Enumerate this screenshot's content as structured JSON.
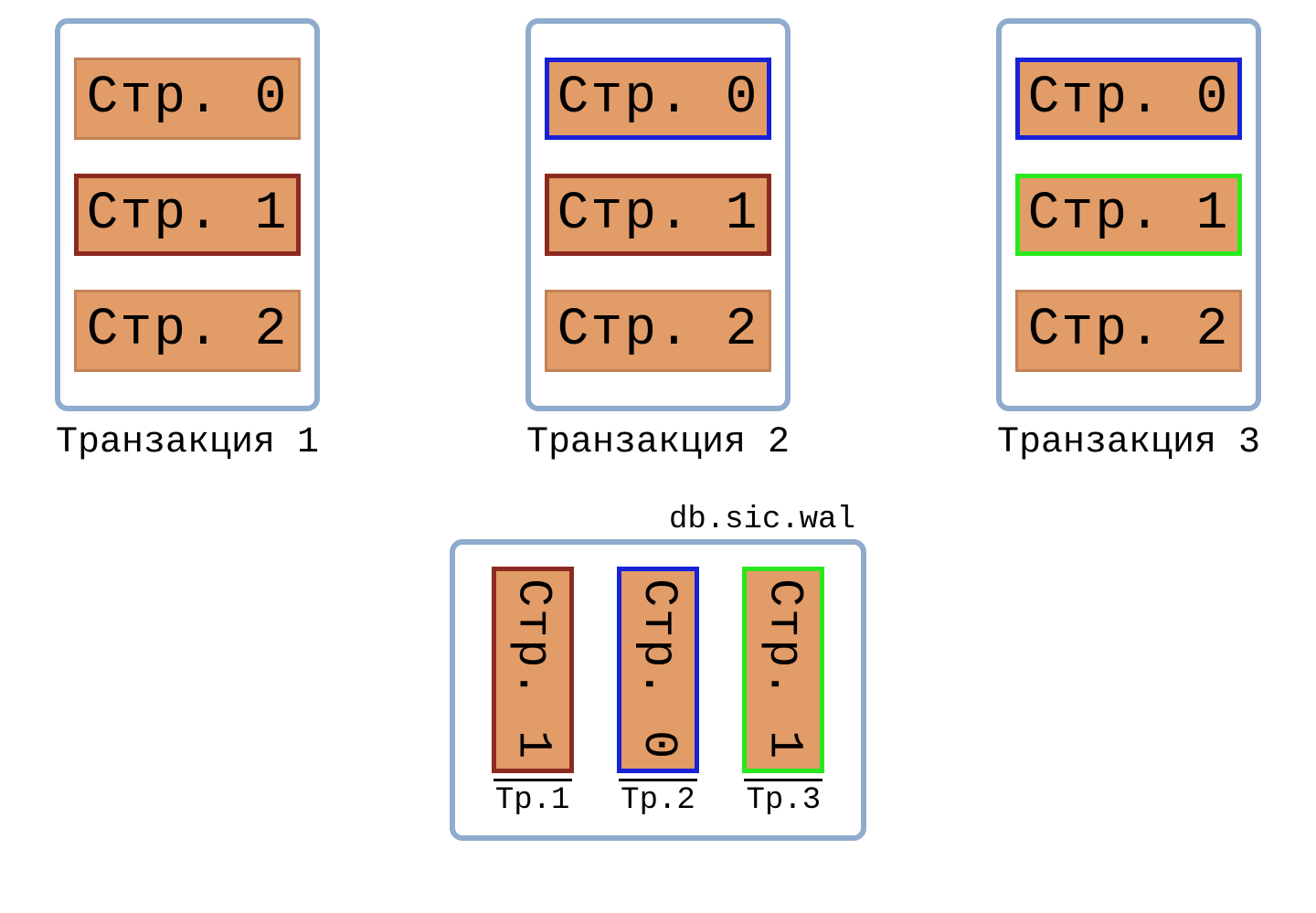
{
  "colors": {
    "container_border": "#8fabce",
    "container_border_width": 6,
    "page_fill": "#e29c67",
    "page_text": "#000000",
    "border_default": "#c28157",
    "border_default_width": 3,
    "border_red": "#8c2a1f",
    "border_blue": "#1820d8",
    "border_green": "#29e81e",
    "highlight_border_width": 5
  },
  "transactions": [
    {
      "label": "Транзакция 1",
      "pages": [
        {
          "text": "Стр. 0",
          "border": "default"
        },
        {
          "text": "Стр. 1",
          "border": "red"
        },
        {
          "text": "Стр. 2",
          "border": "default"
        }
      ]
    },
    {
      "label": "Транзакция 2",
      "pages": [
        {
          "text": "Стр. 0",
          "border": "blue"
        },
        {
          "text": "Стр. 1",
          "border": "red"
        },
        {
          "text": "Стр. 2",
          "border": "default"
        }
      ]
    },
    {
      "label": "Транзакция 3",
      "pages": [
        {
          "text": "Стр. 0",
          "border": "blue"
        },
        {
          "text": "Стр. 1",
          "border": "green"
        },
        {
          "text": "Стр. 2",
          "border": "default"
        }
      ]
    }
  ],
  "wal": {
    "title": "db.sic.wal",
    "entries": [
      {
        "text": "Стр. 1",
        "border": "red",
        "label": "Тр.1"
      },
      {
        "text": "Стр. 0",
        "border": "blue",
        "label": "Тр.2"
      },
      {
        "text": "Стр. 1",
        "border": "green",
        "label": "Тр.3"
      }
    ]
  }
}
